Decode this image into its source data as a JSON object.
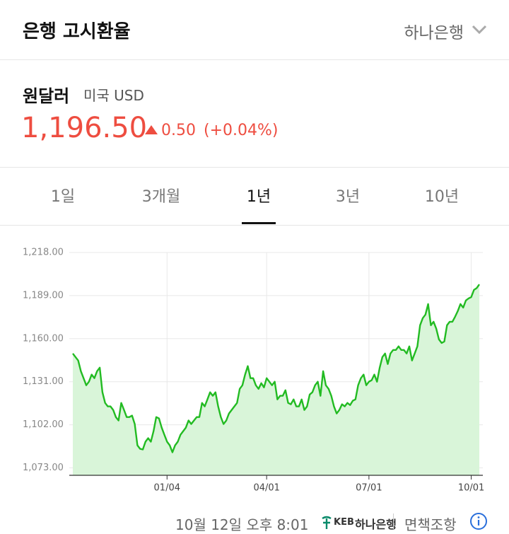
{
  "header": {
    "title": "은행 고시환율",
    "bank": "하나은행"
  },
  "rate": {
    "name": "원달러",
    "country": "미국 USD",
    "value": "1,196.50",
    "change": "0.50",
    "change_pct": "(+0.04%)"
  },
  "tabs": [
    "1일",
    "3개월",
    "1년",
    "3년",
    "10년"
  ],
  "active_tab": 2,
  "chart_data": {
    "type": "area",
    "line_color": "#22bb22",
    "fill_color": "#d9f5d9",
    "grid": true,
    "values": [
      1150.0,
      1147.6,
      1145.3,
      1138.1,
      1133.4,
      1128.6,
      1131.0,
      1135.8,
      1133.4,
      1138.1,
      1140.5,
      1123.9,
      1116.7,
      1114.4,
      1114.4,
      1112.0,
      1107.2,
      1104.9,
      1116.7,
      1112.0,
      1107.2,
      1107.2,
      1108.2,
      1102.5,
      1088.2,
      1085.8,
      1085.4,
      1090.6,
      1093.0,
      1090.6,
      1097.7,
      1107.2,
      1106.3,
      1100.1,
      1095.3,
      1090.6,
      1088.2,
      1083.5,
      1088.2,
      1090.6,
      1095.3,
      1097.7,
      1100.1,
      1104.9,
      1102.5,
      1104.9,
      1107.2,
      1107.2,
      1116.7,
      1114.4,
      1119.1,
      1123.9,
      1121.5,
      1123.9,
      1114.4,
      1107.2,
      1102.5,
      1104.9,
      1109.6,
      1112.0,
      1114.4,
      1116.7,
      1126.2,
      1128.6,
      1135.8,
      1141.5,
      1133.4,
      1133.4,
      1128.6,
      1126.2,
      1130.0,
      1127.2,
      1133.4,
      1131.0,
      1128.6,
      1131.0,
      1119.1,
      1121.5,
      1121.5,
      1125.3,
      1116.7,
      1115.8,
      1119.1,
      1114.4,
      1114.4,
      1119.1,
      1112.0,
      1114.4,
      1122.4,
      1123.9,
      1128.6,
      1131.0,
      1121.5,
      1138.1,
      1128.6,
      1126.2,
      1121.5,
      1114.4,
      1109.6,
      1112.0,
      1115.8,
      1114.4,
      1116.7,
      1115.3,
      1118.2,
      1119.1,
      1128.6,
      1133.4,
      1135.8,
      1128.6,
      1131.0,
      1132.0,
      1135.8,
      1131.0,
      1140.5,
      1147.6,
      1150.0,
      1142.9,
      1150.0,
      1152.4,
      1152.4,
      1154.8,
      1152.4,
      1152.4,
      1150.0,
      1154.8,
      1145.3,
      1150.0,
      1154.8,
      1169.0,
      1173.8,
      1176.2,
      1183.3,
      1169.0,
      1171.4,
      1166.7,
      1159.5,
      1157.1,
      1158.1,
      1169.0,
      1171.4,
      1171.4,
      1174.7,
      1178.5,
      1183.3,
      1180.9,
      1185.7,
      1187.1,
      1188.0,
      1192.8,
      1194.0,
      1196.5
    ],
    "xlim": [
      0,
      151
    ],
    "xticks": [
      {
        "value": 35,
        "label": "01/04"
      },
      {
        "value": 72,
        "label": "04/01"
      },
      {
        "value": 110,
        "label": "07/01"
      },
      {
        "value": 148,
        "label": "10/01"
      }
    ],
    "ylim": [
      1068,
      1218
    ],
    "yticks": [
      {
        "value": 1073,
        "label": "1,073.00"
      },
      {
        "value": 1102,
        "label": "1,102.00"
      },
      {
        "value": 1131,
        "label": "1,131.00"
      },
      {
        "value": 1160,
        "label": "1,160.00"
      },
      {
        "value": 1189,
        "label": "1,189.00"
      },
      {
        "value": 1218,
        "label": "1,218.00"
      }
    ]
  },
  "footer": {
    "timestamp": "10월 12일 오후 8:01",
    "logo_mark": "KEB",
    "logo_text": "하나은행",
    "disclaimer": "면책조항"
  }
}
